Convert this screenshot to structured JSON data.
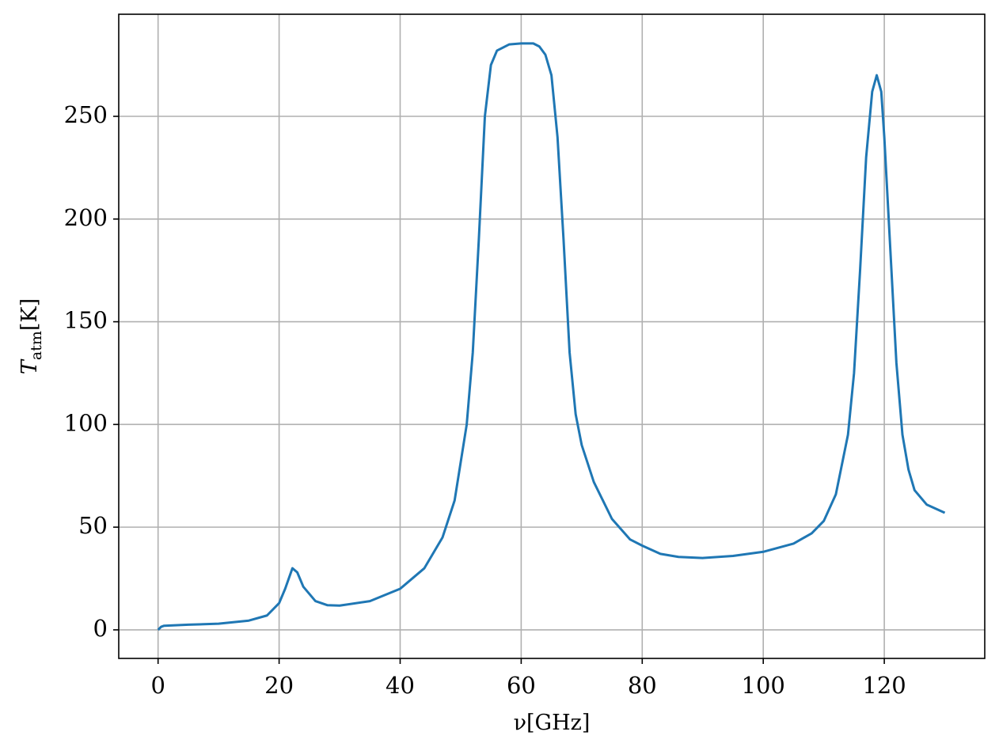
{
  "chart_data": {
    "type": "line",
    "xlabel": "ν[GHz]",
    "ylabel": {
      "symbol": "T",
      "subscript": "atm",
      "unit": "[K]"
    },
    "x": [
      0,
      0.5,
      1,
      5,
      10,
      15,
      18,
      20,
      21,
      22.2,
      23,
      24,
      26,
      28,
      30,
      35,
      40,
      44,
      47,
      49,
      51,
      52,
      53,
      54,
      55,
      56,
      58,
      60,
      62,
      63,
      64,
      65,
      66,
      67,
      68,
      69,
      70,
      72,
      75,
      78,
      80,
      83,
      86,
      90,
      95,
      100,
      105,
      108,
      110,
      112,
      114,
      115,
      116,
      117,
      118,
      118.75,
      119.5,
      120,
      121,
      122,
      123,
      124,
      125,
      127,
      130
    ],
    "series": [
      {
        "color": "#1f77b4",
        "values": [
          0,
          1.5,
          2,
          2.5,
          3,
          4.5,
          7,
          13,
          20,
          30,
          28,
          21,
          14,
          12,
          11.8,
          14,
          20,
          30,
          45,
          63,
          100,
          135,
          190,
          250,
          275,
          282,
          285,
          285.5,
          285.5,
          284,
          280,
          270,
          240,
          190,
          135,
          105,
          90,
          72,
          54,
          44,
          41,
          37,
          35.5,
          35,
          36,
          38,
          42,
          47,
          53,
          66,
          95,
          125,
          175,
          230,
          262,
          270,
          262,
          240,
          185,
          130,
          95,
          78,
          68,
          61,
          57
        ]
      }
    ],
    "xlim": [
      -6.5,
      136.6
    ],
    "ylim": [
      -13.9,
      299.7
    ],
    "xticks": [
      0,
      20,
      40,
      60,
      80,
      100,
      120
    ],
    "yticks": [
      0,
      50,
      100,
      150,
      200,
      250
    ],
    "grid": true
  }
}
